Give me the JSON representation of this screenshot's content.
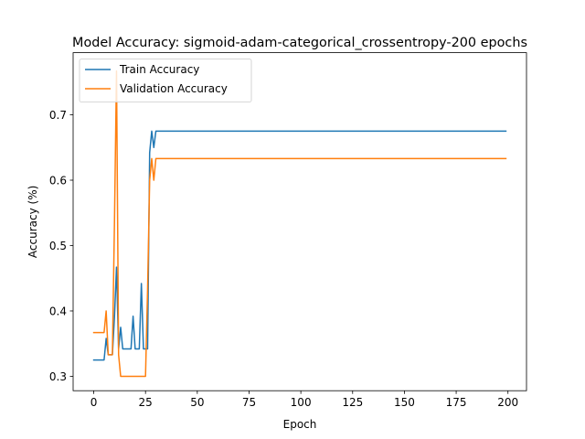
{
  "chart_data": {
    "type": "line",
    "title": "Model Accuracy: sigmoid-adam-categorical_crossentropy-200 epochs",
    "xlabel": "Epoch",
    "ylabel": "Accuracy (%)",
    "xlim": [
      -9.95,
      208.95
    ],
    "ylim": [
      0.278,
      0.795
    ],
    "xticks": [
      0,
      25,
      50,
      75,
      100,
      125,
      150,
      175,
      200
    ],
    "yticks": [
      0.3,
      0.4,
      0.5,
      0.6,
      0.7
    ],
    "ytick_labels": [
      "0.3",
      "0.4",
      "0.5",
      "0.6",
      "0.7"
    ],
    "grid": false,
    "legend_position": "upper-left",
    "series": [
      {
        "name": "Train Accuracy",
        "color": "#1f77b4",
        "points": [
          [
            0,
            0.325
          ],
          [
            1,
            0.325
          ],
          [
            2,
            0.325
          ],
          [
            3,
            0.325
          ],
          [
            4,
            0.325
          ],
          [
            5,
            0.325
          ],
          [
            6,
            0.358
          ],
          [
            7,
            0.333
          ],
          [
            8,
            0.333
          ],
          [
            9,
            0.333
          ],
          [
            10,
            0.39
          ],
          [
            11,
            0.467
          ],
          [
            12,
            0.342
          ],
          [
            13,
            0.375
          ],
          [
            14,
            0.342
          ],
          [
            15,
            0.342
          ],
          [
            16,
            0.342
          ],
          [
            17,
            0.342
          ],
          [
            18,
            0.342
          ],
          [
            19,
            0.392
          ],
          [
            20,
            0.342
          ],
          [
            21,
            0.342
          ],
          [
            22,
            0.342
          ],
          [
            23,
            0.442
          ],
          [
            24,
            0.342
          ],
          [
            25,
            0.342
          ],
          [
            26,
            0.342
          ],
          [
            27,
            0.642
          ],
          [
            28,
            0.675
          ],
          [
            29,
            0.65
          ],
          [
            30,
            0.675
          ],
          [
            199,
            0.675
          ]
        ]
      },
      {
        "name": "Validation Accuracy",
        "color": "#ff7f0e",
        "points": [
          [
            0,
            0.367
          ],
          [
            1,
            0.367
          ],
          [
            2,
            0.367
          ],
          [
            3,
            0.367
          ],
          [
            4,
            0.367
          ],
          [
            5,
            0.367
          ],
          [
            6,
            0.4
          ],
          [
            7,
            0.333
          ],
          [
            8,
            0.333
          ],
          [
            9,
            0.333
          ],
          [
            10,
            0.533
          ],
          [
            11,
            0.767
          ],
          [
            12,
            0.333
          ],
          [
            13,
            0.3
          ],
          [
            14,
            0.3
          ],
          [
            15,
            0.3
          ],
          [
            16,
            0.3
          ],
          [
            17,
            0.3
          ],
          [
            18,
            0.3
          ],
          [
            19,
            0.3
          ],
          [
            20,
            0.3
          ],
          [
            21,
            0.3
          ],
          [
            22,
            0.3
          ],
          [
            23,
            0.3
          ],
          [
            24,
            0.3
          ],
          [
            25,
            0.3
          ],
          [
            26,
            0.433
          ],
          [
            27,
            0.6
          ],
          [
            28,
            0.633
          ],
          [
            29,
            0.6
          ],
          [
            30,
            0.633
          ],
          [
            199,
            0.633
          ]
        ]
      }
    ]
  }
}
